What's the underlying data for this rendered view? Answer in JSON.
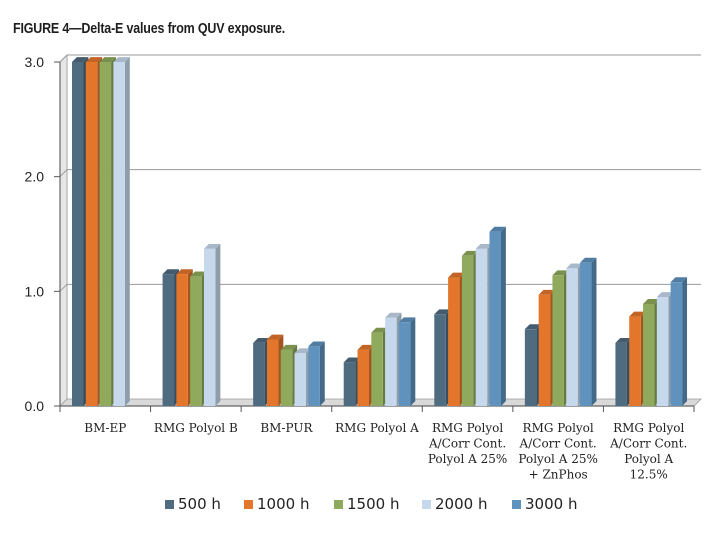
{
  "chart_data": {
    "type": "bar",
    "title": "FIGURE 4—Delta-E values from QUV exposure.",
    "xlabel": "",
    "ylabel": "",
    "ylim": [
      0,
      3
    ],
    "yticks": [
      "0.0",
      "1.0",
      "2.0",
      "3.0"
    ],
    "grid": true,
    "legend_position": "bottom",
    "categories": [
      [
        "BM-EP"
      ],
      [
        "RMG Polyol B"
      ],
      [
        "BM-PUR"
      ],
      [
        "RMG Polyol A"
      ],
      [
        "RMG Polyol",
        "A/Corr Cont.",
        "Polyol A 25%"
      ],
      [
        "RMG Polyol",
        "A/Corr Cont.",
        "Polyol A 25%",
        "+ ZnPhos"
      ],
      [
        "RMG Polyol",
        "A/Corr Cont.",
        "Polyol A",
        "12.5%"
      ]
    ],
    "series": [
      {
        "name": "500 h",
        "color": "#4f6b80",
        "values": [
          3.0,
          1.15,
          0.55,
          0.38,
          0.8,
          0.67,
          0.55
        ]
      },
      {
        "name": "1000 h",
        "color": "#e3762b",
        "values": [
          3.0,
          1.15,
          0.58,
          0.49,
          1.12,
          0.97,
          0.78
        ]
      },
      {
        "name": "1500 h",
        "color": "#8faa5c",
        "values": [
          3.0,
          1.13,
          0.49,
          0.64,
          1.31,
          1.14,
          0.89
        ]
      },
      {
        "name": "2000 h",
        "color": "#c6d9ec",
        "values": [
          3.0,
          1.37,
          0.46,
          0.77,
          1.37,
          1.2,
          0.95
        ]
      },
      {
        "name": "3000 h",
        "color": "#5f93be",
        "values": [
          null,
          null,
          0.52,
          0.73,
          1.52,
          1.25,
          1.08
        ]
      }
    ]
  }
}
